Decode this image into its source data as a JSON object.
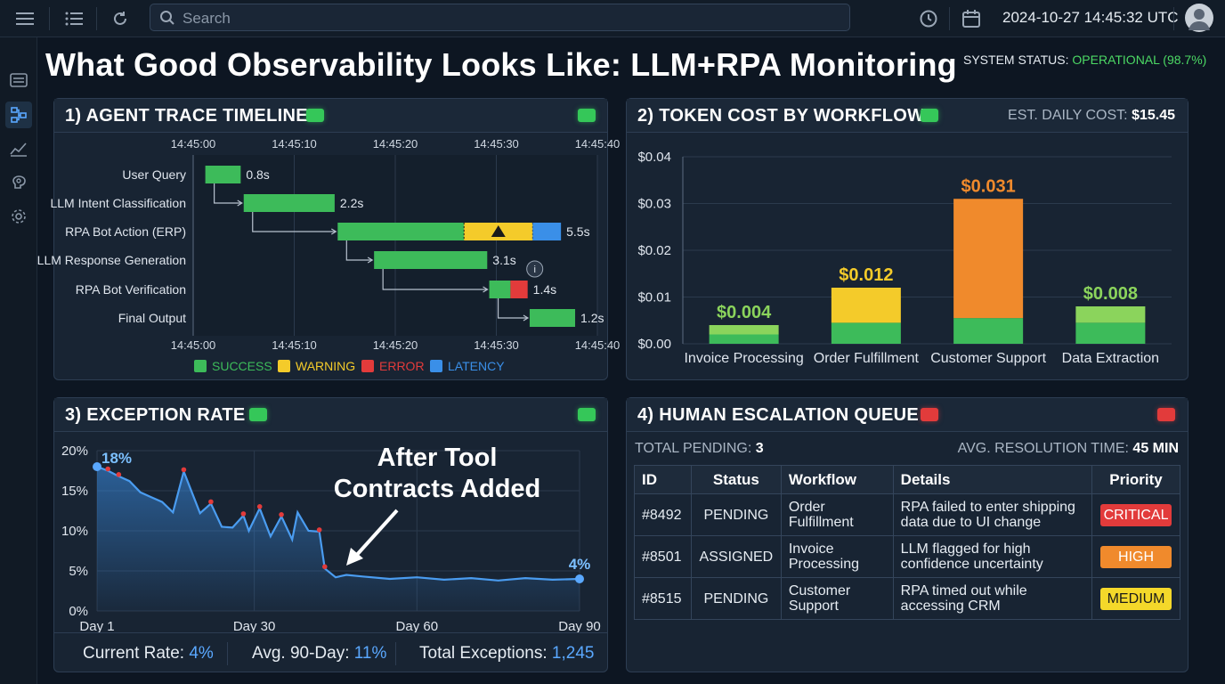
{
  "topbar": {
    "search_placeholder": "Search",
    "datetime": "2024-10-27 14:45:32 UTC",
    "icons": [
      "menu-icon",
      "list-icon",
      "refresh-icon",
      "search-icon",
      "history-icon",
      "calendar-icon",
      "user-avatar-icon"
    ]
  },
  "sidebar": {
    "icons": [
      "inbox-icon",
      "flow-icon",
      "analytics-icon",
      "brain-icon",
      "settings-icon"
    ],
    "active": "flow-icon"
  },
  "page": {
    "title": "What Good Observability Looks Like: LLM+RPA Monitoring",
    "status_label": "SYSTEM STATUS: ",
    "status_value": "OPERATIONAL (98.7%)"
  },
  "colors": {
    "success": "#3dbb5a",
    "warning": "#f4cb2a",
    "error": "#e23b3b",
    "latency": "#3a8fe8",
    "orange": "#f08a2c",
    "accent_blue": "#5aa8ff"
  },
  "trace": {
    "title": "1) AGENT TRACE TIMELINE",
    "led": "green",
    "time_ticks": [
      "14:45:00",
      "14:45:10",
      "14:45:20",
      "14:45:30",
      "14:45:40"
    ],
    "steps": [
      {
        "label": "User Query",
        "start": 1.2,
        "duration": "0.8s",
        "segments": [
          {
            "status": "success",
            "len": 3.5
          }
        ]
      },
      {
        "label": "LLM Intent Classification",
        "start": 5.0,
        "duration": "2.2s",
        "segments": [
          {
            "status": "success",
            "len": 9.0
          }
        ]
      },
      {
        "label": "RPA Bot Action (ERP)",
        "start": 14.3,
        "duration": "5.5s",
        "segments": [
          {
            "status": "success",
            "len": 12.5
          },
          {
            "status": "warning",
            "len": 6.8
          },
          {
            "status": "latency",
            "len": 2.8
          }
        ]
      },
      {
        "label": "LLM Response Generation",
        "start": 17.9,
        "duration": "3.1s",
        "segments": [
          {
            "status": "success",
            "len": 11.2
          }
        ]
      },
      {
        "label": "RPA Bot Verification",
        "start": 29.3,
        "duration": "1.4s",
        "segments": [
          {
            "status": "success",
            "len": 2.1
          },
          {
            "status": "error",
            "len": 1.7
          }
        ]
      },
      {
        "label": "Final Output",
        "start": 33.3,
        "duration": "1.2s",
        "segments": [
          {
            "status": "success",
            "len": 4.5
          }
        ]
      }
    ],
    "legend": [
      "SUCCESS",
      "WARNING",
      "ERROR",
      "LATENCY"
    ]
  },
  "cost": {
    "title": "2) TOKEN COST BY WORKFLOW",
    "led": "green",
    "daily_label": "EST. DAILY COST: ",
    "daily_value": "$15.45"
  },
  "chart_data": [
    {
      "type": "bar",
      "title": "2) TOKEN COST BY WORKFLOW",
      "categories": [
        "Invoice Processing",
        "Order Fulfillment",
        "Customer Support",
        "Data Extraction"
      ],
      "series": [
        {
          "values": [
            0.002,
            0.0045,
            0.0055,
            0.0045
          ]
        },
        {
          "values": [
            0.002,
            0.0075,
            0.0255,
            0.0035
          ]
        }
      ],
      "totals": [
        0.004,
        0.012,
        0.031,
        0.008
      ],
      "total_labels": [
        "$0.004",
        "$0.012",
        "$0.031",
        "$0.008"
      ],
      "top_colors": [
        "#8bd45c",
        "#f4cb2a",
        "#f08a2c",
        "#8bd45c"
      ],
      "yticks": [
        "$0.04",
        "$0.03",
        "$0.02",
        "$0.01",
        "$0.00"
      ],
      "ylim": [
        0,
        0.04
      ],
      "grid": true
    },
    {
      "type": "line",
      "title": "3) EXCEPTION RATE",
      "xticks": [
        "Day 1",
        "Day 30",
        "Day 60",
        "Day 90"
      ],
      "yticks": [
        "20%",
        "15%",
        "10%",
        "5%",
        "0%"
      ],
      "ylim": [
        0,
        20
      ],
      "xlim": [
        1,
        90
      ],
      "x": [
        1,
        3,
        5,
        7,
        9,
        11,
        13,
        15,
        17,
        20,
        22,
        24,
        26,
        28,
        29,
        31,
        33,
        35,
        37,
        38,
        40,
        42,
        43,
        45,
        47,
        50,
        55,
        60,
        65,
        70,
        75,
        80,
        85,
        90
      ],
      "y": [
        18,
        17.5,
        16.8,
        16.2,
        14.8,
        14.2,
        13.6,
        12.3,
        17.4,
        12.2,
        13.4,
        10.5,
        10.4,
        11.9,
        10.0,
        12.8,
        9.3,
        11.8,
        8.9,
        12.3,
        10.0,
        9.9,
        5.3,
        4.2,
        4.5,
        4.3,
        4.0,
        4.2,
        3.9,
        4.1,
        3.8,
        4.1,
        3.9,
        4.0
      ],
      "anomaly_x": [
        3,
        5,
        17,
        22,
        28,
        31,
        35,
        42,
        43
      ],
      "start_label": "18%",
      "end_label": "4%",
      "annotation": "After Tool Contracts Added",
      "grid": true
    }
  ],
  "exceptions": {
    "title": "3) EXCEPTION RATE",
    "led": "green",
    "annotation_line1": "After Tool",
    "annotation_line2": "Contracts Added",
    "stats": [
      {
        "label": "Current Rate: ",
        "value": "4%"
      },
      {
        "label": "Avg. 90-Day: ",
        "value": "11%"
      },
      {
        "label": "Total Exceptions: ",
        "value": "1,245"
      }
    ]
  },
  "escalation": {
    "title": "4) HUMAN ESCALATION QUEUE",
    "led": "red",
    "pending_label": "TOTAL PENDING: ",
    "pending_value": "3",
    "resolution_label": "AVG. RESOLUTION TIME: ",
    "resolution_value": "45 MIN",
    "columns": [
      "ID",
      "Status",
      "Workflow",
      "Details",
      "Priority"
    ],
    "rows": [
      {
        "id": "#8492",
        "status": "PENDING",
        "workflow1": "Order",
        "workflow2": "Fulfillment",
        "details1": "RPA failed to enter shipping",
        "details2": "data due to UI change",
        "priority": "CRITICAL",
        "priority_bg": "#e23b3b",
        "priority_fg": "#ffffff"
      },
      {
        "id": "#8501",
        "status": "ASSIGNED",
        "workflow1": "Invoice",
        "workflow2": "Processing",
        "details1": "LLM flagged for high",
        "details2": "confidence uncertainty",
        "priority": "HIGH",
        "priority_bg": "#f08a2c",
        "priority_fg": "#ffffff"
      },
      {
        "id": "#8515",
        "status": "PENDING",
        "workflow1": "Customer",
        "workflow2": "Support",
        "details1": "RPA timed out while",
        "details2": "accessing CRM",
        "priority": "MEDIUM",
        "priority_bg": "#f4d82a",
        "priority_fg": "#1a1a1a"
      }
    ]
  }
}
